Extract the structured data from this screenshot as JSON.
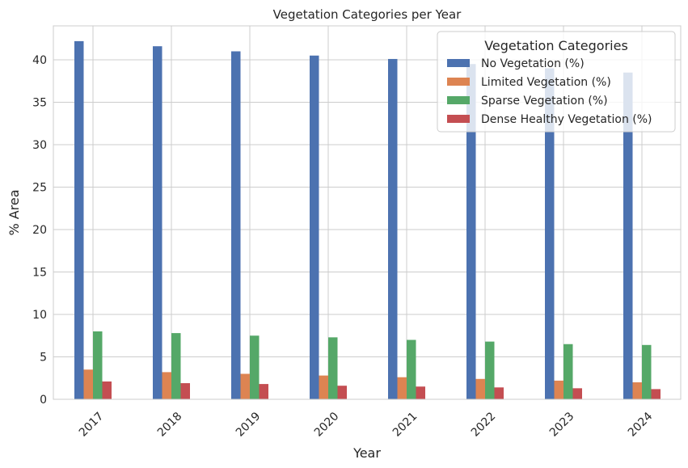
{
  "chart_data": {
    "type": "bar",
    "title": "Vegetation Categories per Year",
    "xlabel": "Year",
    "ylabel": "% Area",
    "categories": [
      "2017",
      "2018",
      "2019",
      "2020",
      "2021",
      "2022",
      "2023",
      "2024"
    ],
    "ylim": [
      0,
      44
    ],
    "yticks": [
      0,
      5,
      10,
      15,
      20,
      25,
      30,
      35,
      40
    ],
    "grid": true,
    "legend_title": "Vegetation Categories",
    "legend_position": "top-right",
    "series": [
      {
        "name": "No Vegetation (%)",
        "color": "#4c72b0",
        "values": [
          42.2,
          41.6,
          41.0,
          40.5,
          40.1,
          39.5,
          39.0,
          38.5
        ]
      },
      {
        "name": "Limited Vegetation (%)",
        "color": "#dd8452",
        "values": [
          3.5,
          3.2,
          3.0,
          2.8,
          2.6,
          2.4,
          2.2,
          2.0
        ]
      },
      {
        "name": "Sparse Vegetation (%)",
        "color": "#55a868",
        "values": [
          8.0,
          7.8,
          7.5,
          7.3,
          7.0,
          6.8,
          6.5,
          6.4
        ]
      },
      {
        "name": "Dense Healthy Vegetation (%)",
        "color": "#c44e52",
        "values": [
          2.1,
          1.9,
          1.8,
          1.6,
          1.5,
          1.4,
          1.3,
          1.2
        ]
      }
    ]
  }
}
